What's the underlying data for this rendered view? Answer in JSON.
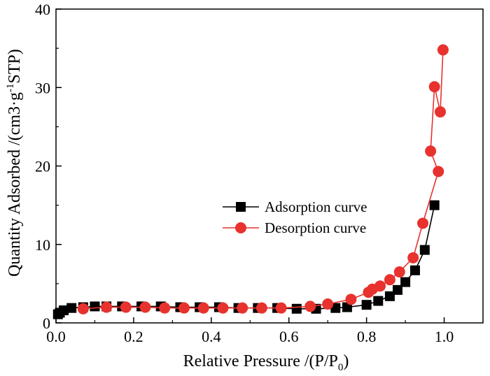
{
  "chart_data": {
    "type": "line",
    "xlabel": "Relative Pressure  /(P/P",
    "xlabel_subscript": "0",
    "xlabel_close": ")",
    "ylabel": "Quantity Adsorbed  /(cm3·g",
    "ylabel_superscript": "-1",
    "ylabel_close": "STP)",
    "xlim": [
      0.0,
      1.1
    ],
    "ylim": [
      0,
      40
    ],
    "x_ticks": [
      "0.0",
      "0.2",
      "0.4",
      "0.6",
      "0.8",
      "1.0"
    ],
    "y_ticks": [
      "0",
      "10",
      "20",
      "30",
      "40"
    ],
    "grid": false,
    "legend_position": "center-right",
    "series": [
      {
        "name": "Adsorption curve",
        "color": "#000000",
        "marker": "square",
        "x": [
          0.005,
          0.01,
          0.02,
          0.04,
          0.07,
          0.1,
          0.13,
          0.17,
          0.22,
          0.27,
          0.32,
          0.37,
          0.42,
          0.47,
          0.52,
          0.57,
          0.62,
          0.67,
          0.72,
          0.75,
          0.8,
          0.83,
          0.86,
          0.88,
          0.9,
          0.925,
          0.95,
          0.975
        ],
        "y": [
          1.1,
          1.3,
          1.6,
          1.9,
          2.0,
          2.1,
          2.1,
          2.1,
          2.1,
          2.1,
          2.0,
          2.0,
          2.0,
          1.9,
          1.9,
          1.9,
          1.8,
          1.8,
          1.9,
          2.0,
          2.3,
          2.8,
          3.4,
          4.2,
          5.2,
          6.7,
          9.3,
          15.0
        ]
      },
      {
        "name": "Desorption curve",
        "color": "#e8322e",
        "marker": "circle",
        "x": [
          0.997,
          0.99,
          0.975,
          0.965,
          0.985,
          0.945,
          0.92,
          0.885,
          0.86,
          0.835,
          0.815,
          0.805,
          0.76,
          0.7,
          0.655,
          0.58,
          0.53,
          0.48,
          0.43,
          0.38,
          0.33,
          0.28,
          0.23,
          0.18,
          0.13,
          0.07
        ],
        "y": [
          34.8,
          26.9,
          30.1,
          21.9,
          19.3,
          12.7,
          8.3,
          6.5,
          5.5,
          4.7,
          4.3,
          3.9,
          3.0,
          2.4,
          2.1,
          1.9,
          1.9,
          1.9,
          1.9,
          1.9,
          1.9,
          1.9,
          2.0,
          2.0,
          2.0,
          1.8
        ]
      }
    ]
  }
}
